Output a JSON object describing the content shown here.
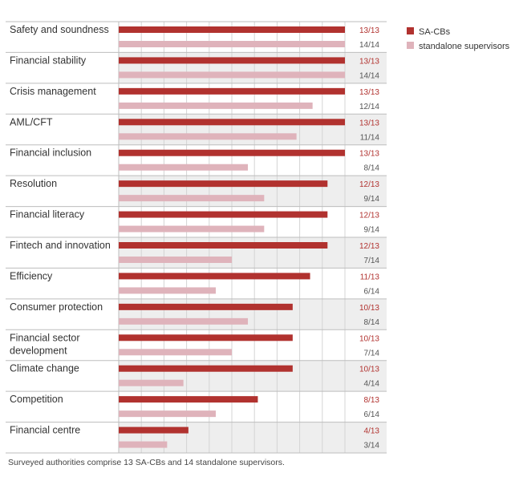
{
  "chart_data": {
    "type": "bar",
    "orientation": "horizontal",
    "categories": [
      "Safety and soundness",
      "Financial stability",
      "Crisis management",
      "AML/CFT",
      "Financial inclusion",
      "Resolution",
      "Financial literacy",
      "Fintech and innovation",
      "Efficiency",
      "Consumer protection",
      "Financial sector development",
      "Climate change",
      "Competition",
      "Financial centre"
    ],
    "category_lines": [
      [
        "Safety and soundness"
      ],
      [
        "Financial stability"
      ],
      [
        "Crisis management"
      ],
      [
        "AML/CFT"
      ],
      [
        "Financial inclusion"
      ],
      [
        "Resolution"
      ],
      [
        "Financial literacy"
      ],
      [
        "Fintech and innovation"
      ],
      [
        "Efficiency"
      ],
      [
        "Consumer protection"
      ],
      [
        "Financial sector",
        "development"
      ],
      [
        "Climate change"
      ],
      [
        "Competition"
      ],
      [
        "Financial centre"
      ]
    ],
    "series": [
      {
        "name": "SA-CBs",
        "color": "#b1322f",
        "values": [
          100,
          100,
          100,
          100,
          100,
          92.3,
          92.3,
          92.3,
          84.6,
          76.9,
          76.9,
          76.9,
          61.5,
          30.8
        ],
        "labels": [
          "13/13",
          "13/13",
          "13/13",
          "13/13",
          "13/13",
          "12/13",
          "12/13",
          "12/13",
          "11/13",
          "10/13",
          "10/13",
          "10/13",
          "8/13",
          "4/13"
        ]
      },
      {
        "name": "standalone supervisors",
        "color": "#dfb3bb",
        "values": [
          100,
          100,
          85.7,
          78.6,
          57.1,
          64.3,
          64.3,
          50,
          42.9,
          57.1,
          50,
          28.6,
          42.9,
          21.4
        ],
        "labels": [
          "14/14",
          "14/14",
          "12/14",
          "11/14",
          "8/14",
          "9/14",
          "9/14",
          "7/14",
          "6/14",
          "8/14",
          "7/14",
          "4/14",
          "6/14",
          "3/14"
        ]
      }
    ],
    "xlim": [
      0,
      100
    ],
    "x_grid_step": 10,
    "grid": true,
    "axis_tick_labels": false,
    "alternating_row_shading": "#eeeeee",
    "legend_position": "top-right"
  },
  "footnote": "Surveyed authorities comprise 13 SA-CBs and 14 standalone supervisors."
}
